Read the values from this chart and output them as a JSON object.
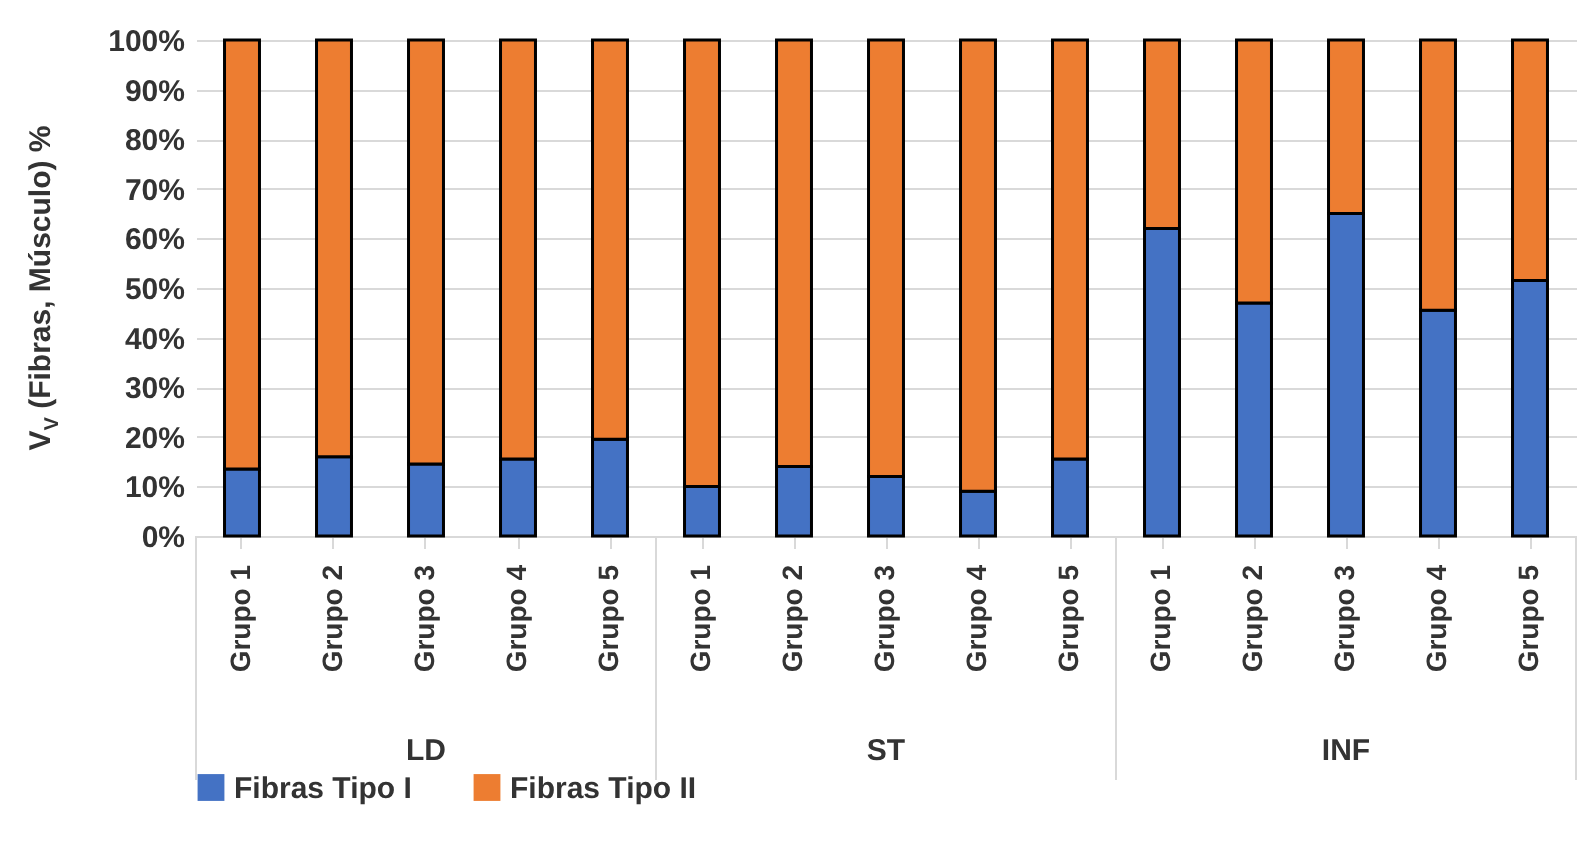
{
  "chart_data": {
    "type": "bar",
    "stacked": true,
    "ylabel": "V$_{V}$ (Fibras, Músculo) %",
    "categories": [
      "Grupo 1",
      "Grupo 2",
      "Grupo 3",
      "Grupo 4",
      "Grupo 5",
      "Grupo 1",
      "Grupo 2",
      "Grupo 3",
      "Grupo 4",
      "Grupo 5",
      "Grupo 1",
      "Grupo 2",
      "Grupo 3",
      "Grupo 4",
      "Grupo 5"
    ],
    "annotations": [
      "LD",
      "ST",
      "INF"
    ],
    "series": [
      {
        "name": "Fibras Tipo I",
        "color": "#4472c4",
        "values": [
          13.5,
          16,
          14.5,
          15.5,
          19.5,
          10,
          14,
          12,
          9,
          15.5,
          62,
          47,
          65,
          45.5,
          51.5
        ]
      },
      {
        "name": "Fibras Tipo II",
        "color": "#ed7d31",
        "values": [
          86.5,
          84,
          85.5,
          84.5,
          80.5,
          90,
          86,
          88,
          91,
          84.5,
          38,
          53,
          35,
          54.5,
          48.5
        ]
      }
    ],
    "ylim": [
      0,
      100
    ],
    "yticks": [
      {
        "value": 0,
        "label": "0%"
      },
      {
        "value": 10,
        "label": "10%"
      },
      {
        "value": 20,
        "label": "20%"
      },
      {
        "value": 30,
        "label": "30%"
      },
      {
        "value": 40,
        "label": "40%"
      },
      {
        "value": 50,
        "label": "50%"
      },
      {
        "value": 60,
        "label": "60%"
      },
      {
        "value": 70,
        "label": "70%"
      },
      {
        "value": 80,
        "label": "80%"
      },
      {
        "value": 90,
        "label": "90%"
      },
      {
        "value": 100,
        "label": "100%"
      }
    ],
    "grid": "y",
    "legend": "bottom"
  }
}
